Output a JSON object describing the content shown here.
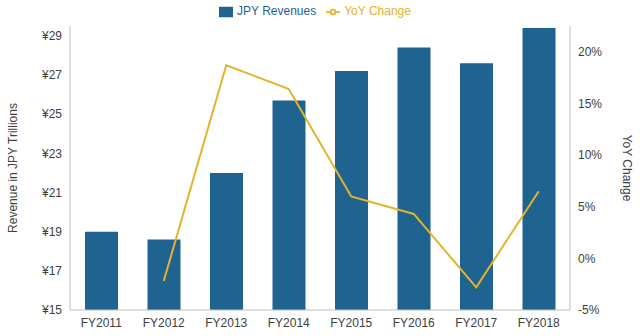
{
  "chart_data": {
    "type": "bar",
    "categories": [
      "FY2011",
      "FY2012",
      "FY2013",
      "FY2014",
      "FY2015",
      "FY2016",
      "FY2017",
      "FY2018"
    ],
    "series": [
      {
        "name": "JPY Revenues",
        "type": "bar",
        "color": "#1f6391",
        "values": [
          19.0,
          18.6,
          22.0,
          25.7,
          27.2,
          28.4,
          27.6,
          29.4
        ]
      },
      {
        "name": "YoY Change",
        "type": "line",
        "color": "#e3b32b",
        "axis": "y2",
        "values": [
          null,
          -2.2,
          18.7,
          16.4,
          6.0,
          4.3,
          -2.8,
          6.5
        ]
      }
    ],
    "y_label": "Revenue in JPY Trillions",
    "y2_label": "YoY Change",
    "ylim": [
      15,
      29.5
    ],
    "yticks": [
      {
        "value": 15,
        "label": "¥15"
      },
      {
        "value": 17,
        "label": "¥17"
      },
      {
        "value": 19,
        "label": "¥19"
      },
      {
        "value": 21,
        "label": "¥21"
      },
      {
        "value": 23,
        "label": "¥23"
      },
      {
        "value": 25,
        "label": "¥25"
      },
      {
        "value": 27,
        "label": "¥27"
      },
      {
        "value": 29,
        "label": "¥29"
      }
    ],
    "y2lim": [
      -5,
      22.5
    ],
    "y2ticks": [
      {
        "value": -5,
        "label": "-5%"
      },
      {
        "value": 0,
        "label": "0%"
      },
      {
        "value": 5,
        "label": "5%"
      },
      {
        "value": 10,
        "label": "10%"
      },
      {
        "value": 15,
        "label": "15%"
      },
      {
        "value": 20,
        "label": "20%"
      }
    ],
    "grid": false,
    "legend": "top"
  }
}
